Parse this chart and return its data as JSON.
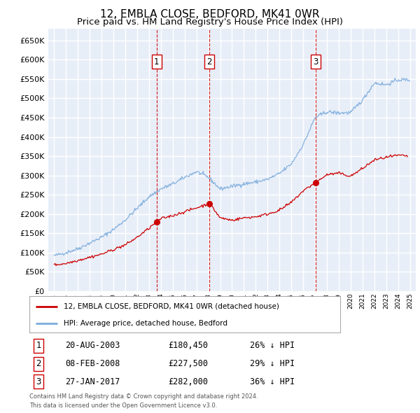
{
  "title": "12, EMBLA CLOSE, BEDFORD, MK41 0WR",
  "subtitle": "Price paid vs. HM Land Registry's House Price Index (HPI)",
  "legend_label_red": "12, EMBLA CLOSE, BEDFORD, MK41 0WR (detached house)",
  "legend_label_blue": "HPI: Average price, detached house, Bedford",
  "footer_line1": "Contains HM Land Registry data © Crown copyright and database right 2024.",
  "footer_line2": "This data is licensed under the Open Government Licence v3.0.",
  "transactions": [
    {
      "num": "1",
      "date": "20-AUG-2003",
      "price": "£180,450",
      "pct": "26% ↓ HPI",
      "year": 2003.63
    },
    {
      "num": "2",
      "date": "08-FEB-2008",
      "price": "£227,500",
      "pct": "29% ↓ HPI",
      "year": 2008.1
    },
    {
      "num": "3",
      "date": "27-JAN-2017",
      "price": "£282,000",
      "pct": "36% ↓ HPI",
      "year": 2017.07
    }
  ],
  "transaction_marker_values": [
    180450,
    227500,
    282000
  ],
  "ylim": [
    0,
    680000
  ],
  "yticks": [
    0,
    50000,
    100000,
    150000,
    200000,
    250000,
    300000,
    350000,
    400000,
    450000,
    500000,
    550000,
    600000,
    650000
  ],
  "xlim_start": 1994.5,
  "xlim_end": 2025.5,
  "background_color": "#e8eef8",
  "fig_bg_color": "#ffffff",
  "red_color": "#cc0000",
  "blue_color": "#7aabdc",
  "vline_color": "#cc0000",
  "grid_color": "#ffffff",
  "legend_border_color": "#aaaaaa",
  "title_fontsize": 11,
  "subtitle_fontsize": 9.5,
  "hpi_anchors_x": [
    1995,
    1996,
    1997,
    1998,
    1999,
    2000,
    2001,
    2002,
    2003,
    2004,
    2005,
    2006,
    2007,
    2008,
    2009,
    2010,
    2011,
    2012,
    2013,
    2014,
    2015,
    2016,
    2017,
    2018,
    2019,
    2020,
    2021,
    2022,
    2023,
    2024,
    2025
  ],
  "hpi_anchors_y": [
    92000,
    100000,
    110000,
    125000,
    140000,
    160000,
    185000,
    215000,
    245000,
    265000,
    278000,
    295000,
    310000,
    295000,
    265000,
    272000,
    278000,
    283000,
    290000,
    305000,
    330000,
    380000,
    450000,
    465000,
    462000,
    463000,
    495000,
    540000,
    535000,
    548000,
    548000
  ],
  "pp_anchors_x": [
    1995,
    1996,
    1997,
    1998,
    1999,
    2000,
    2001,
    2002,
    2003,
    2003.63,
    2004,
    2005,
    2006,
    2007,
    2008.1,
    2009,
    2010,
    2011,
    2012,
    2013,
    2014,
    2015,
    2016,
    2017.07,
    2018,
    2019,
    2020,
    2021,
    2022,
    2023,
    2024,
    2024.8
  ],
  "pp_anchors_y": [
    68000,
    72000,
    80000,
    88000,
    96000,
    108000,
    120000,
    140000,
    163000,
    180450,
    188000,
    196000,
    206000,
    216000,
    227500,
    190000,
    184000,
    190000,
    193000,
    200000,
    210000,
    230000,
    260000,
    282000,
    302000,
    306000,
    298000,
    318000,
    340000,
    347000,
    352000,
    350000
  ]
}
